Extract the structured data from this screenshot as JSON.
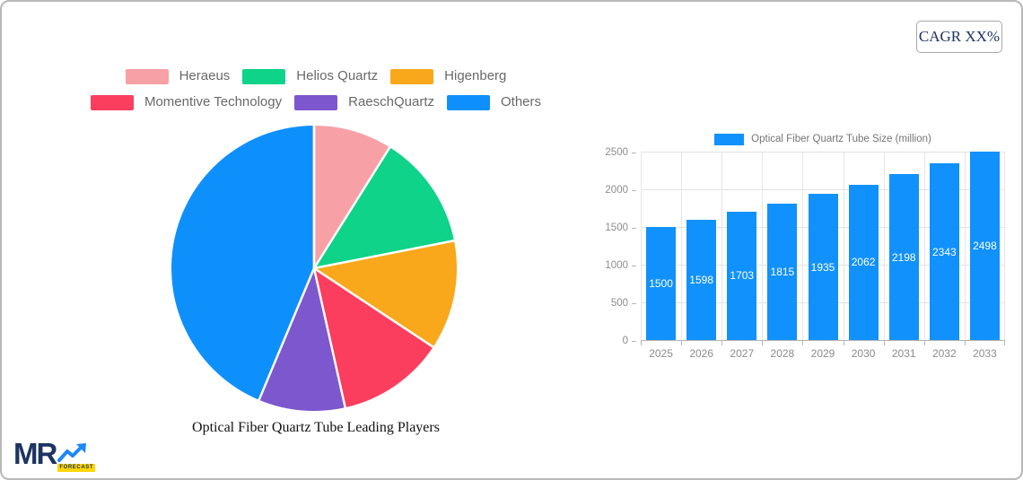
{
  "cagr_button": {
    "label": "CAGR XX%"
  },
  "logo": {
    "text": "MR",
    "sub": "FORECAST"
  },
  "colors": {
    "navy": "#1d3461",
    "bar_blue": "#1191fb",
    "grid": "#e2e2e2",
    "axis_text": "#8c8c8c",
    "legend_text": "#696969",
    "card_border": "#b9b9b9"
  },
  "chart_data": [
    {
      "type": "pie",
      "title": "Optical Fiber Quartz Tube Leading Players",
      "labels": [
        "Heraeus",
        "Helios Quartz",
        "Higenberg",
        "Momentive Technology",
        "RaeschQuartz",
        "Others"
      ],
      "values": [
        8.9,
        13.0,
        12.4,
        12.2,
        9.8,
        43.7
      ],
      "colors": [
        "#f7a1a6",
        "#0ed389",
        "#f9a81c",
        "#fb3e5e",
        "#7d57ce",
        "#0e90fc"
      ],
      "legend_position": "top",
      "legend_rows": [
        [
          0,
          1,
          2
        ],
        [
          3,
          4,
          5
        ]
      ],
      "start_angle": "top",
      "direction": "clockwise",
      "slice_border_color": "#ffffff"
    },
    {
      "type": "bar",
      "legend": "Optical Fiber Quartz Tube Size (million)",
      "categories": [
        "2025",
        "2026",
        "2027",
        "2028",
        "2029",
        "2030",
        "2031",
        "2032",
        "2033"
      ],
      "values": [
        1500,
        1598,
        1703,
        1815,
        1935,
        2062,
        2198,
        2343,
        2498
      ],
      "ylim": [
        0,
        2500
      ],
      "yticks": [
        0,
        500,
        1000,
        1500,
        2000,
        2500
      ],
      "bar_color": "#1191fb",
      "grid": true,
      "value_label_position": "inside-middle",
      "value_label_color": "#ffffff"
    }
  ]
}
